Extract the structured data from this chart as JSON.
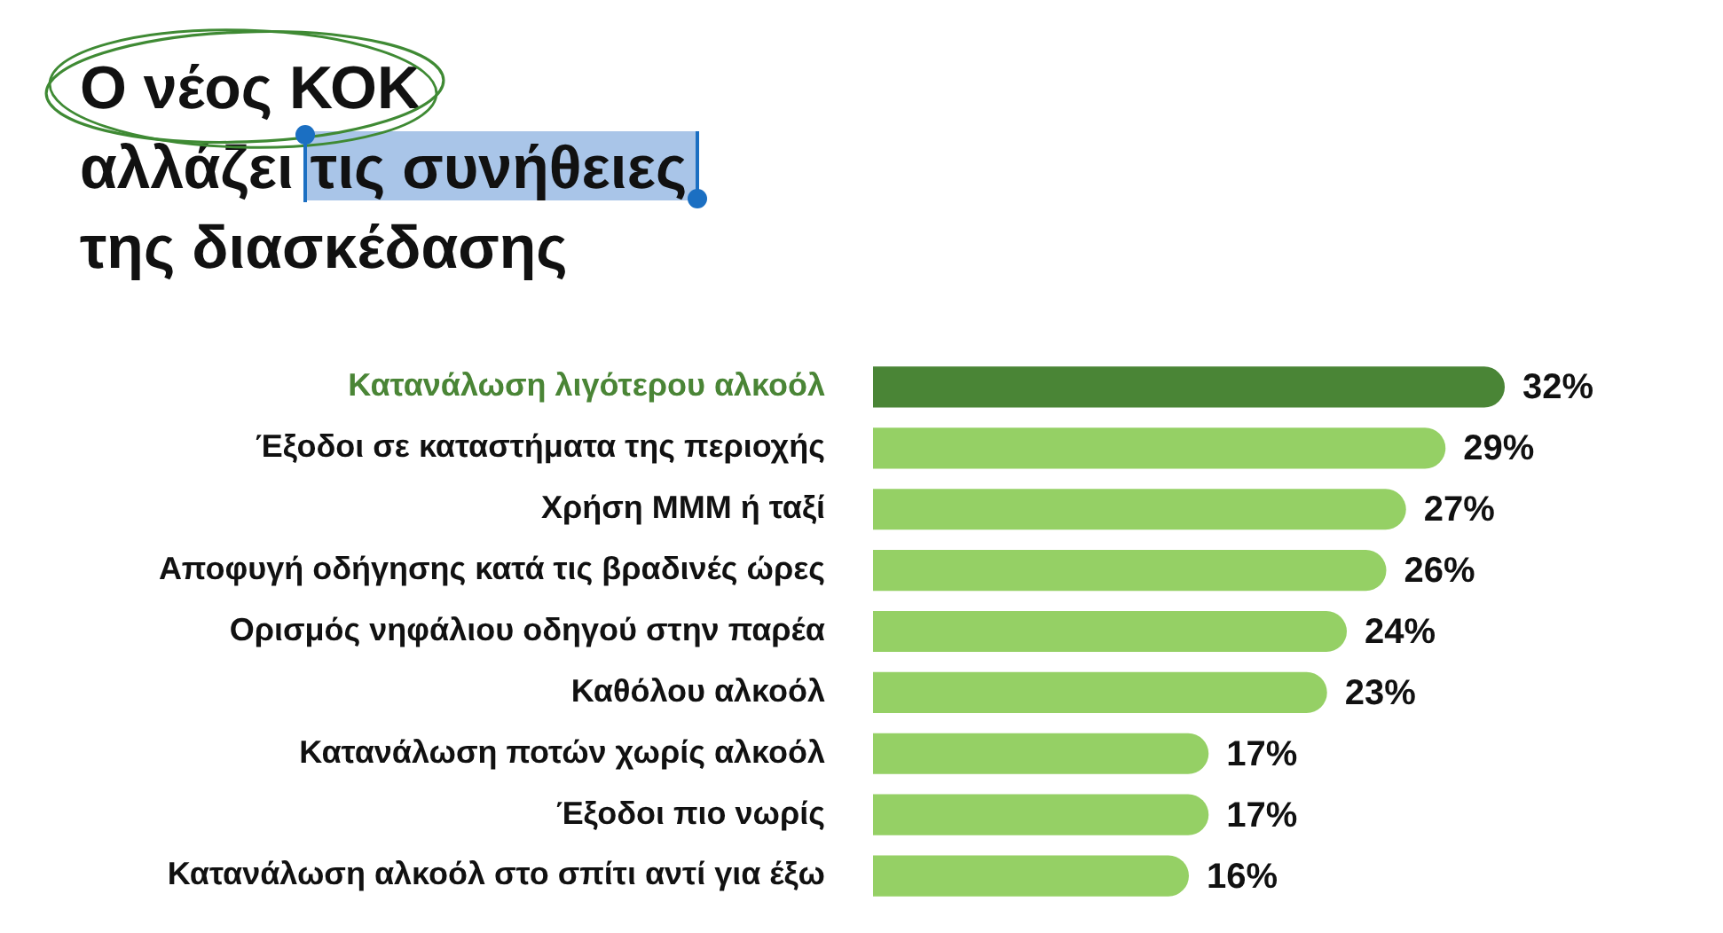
{
  "chart_data": {
    "type": "bar",
    "orientation": "horizontal",
    "title": "Ο νέος ΚΟΚ αλλάζει τις συνήθειες της διασκέδασης",
    "categories": [
      "Κατανάλωση λιγότερου αλκοόλ",
      "Έξοδοι σε καταστήματα της περιοχής",
      "Χρήση ΜΜΜ ή ταξί",
      "Αποφυγή οδήγησης κατά τις βραδινές ώρες",
      "Ορισμός νηφάλιου οδηγού στην παρέα",
      "Καθόλου αλκοόλ",
      "Κατανάλωση ποτών χωρίς αλκοόλ",
      "Έξοδοι πιο νωρίς",
      "Κατανάλωση αλκοόλ στο σπίτι αντί για έξω"
    ],
    "values": [
      32,
      29,
      27,
      26,
      24,
      23,
      17,
      17,
      16
    ],
    "value_labels": [
      "32%",
      "29%",
      "27%",
      "26%",
      "24%",
      "23%",
      "17%",
      "17%",
      "16%"
    ],
    "colors": [
      "#4a8536",
      "#95d065",
      "#95d065",
      "#95d065",
      "#95d065",
      "#95d065",
      "#95d065",
      "#95d065",
      "#95d065"
    ]
  }
}
